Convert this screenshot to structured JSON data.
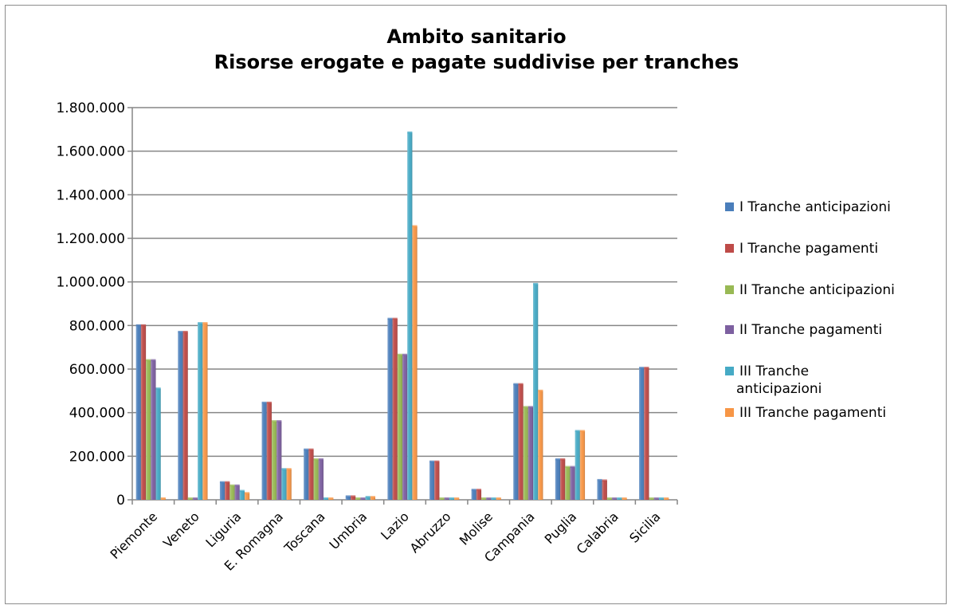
{
  "chart_data": {
    "type": "bar",
    "title": [
      "Ambito sanitario",
      "Risorse erogate e pagate suddivise per tranches"
    ],
    "xlabel": "",
    "ylabel": "",
    "ylim": [
      0,
      1800000
    ],
    "yticks": [
      0,
      200000,
      400000,
      600000,
      800000,
      1000000,
      1200000,
      1400000,
      1600000,
      1800000
    ],
    "ytick_labels": [
      "0",
      "200.000",
      "400.000",
      "600.000",
      "800.000",
      "1.000.000",
      "1.200.000",
      "1.400.000",
      "1.600.000",
      "1.800.000"
    ],
    "grid": true,
    "legend_position": "right",
    "categories": [
      "Piemonte",
      "Veneto",
      "Liguria",
      "E. Romagna",
      "Toscana",
      "Umbria",
      "Lazio",
      "Abruzzo",
      "Molise",
      "Campania",
      "Puglia",
      "Calabria",
      "Sicilia"
    ],
    "series": [
      {
        "name": "I Tranche anticipazioni",
        "label_lines": [
          "I Tranche anticipazioni"
        ],
        "color": "#4a7ebb",
        "values": [
          800000,
          770000,
          80000,
          445000,
          230000,
          15000,
          830000,
          175000,
          45000,
          530000,
          185000,
          90000,
          605000
        ]
      },
      {
        "name": "I Tranche pagamenti",
        "label_lines": [
          "I Tranche pagamenti"
        ],
        "color": "#be4b48",
        "values": [
          800000,
          770000,
          80000,
          445000,
          230000,
          15000,
          830000,
          175000,
          45000,
          530000,
          185000,
          88000,
          605000
        ]
      },
      {
        "name": "II Tranche anticipazioni",
        "label_lines": [
          "II Tranche anticipazioni"
        ],
        "color": "#98b954",
        "values": [
          640000,
          0,
          65000,
          360000,
          185000,
          5000,
          665000,
          0,
          0,
          425000,
          150000,
          0,
          0
        ]
      },
      {
        "name": "II Tranche pagamenti",
        "label_lines": [
          "II Tranche pagamenti"
        ],
        "color": "#7d60a0",
        "values": [
          640000,
          0,
          65000,
          360000,
          185000,
          5000,
          665000,
          0,
          0,
          425000,
          150000,
          0,
          0
        ]
      },
      {
        "name": "III Tranche anticipazioni",
        "label_lines": [
          "III Tranche",
          "anticipazioni"
        ],
        "color": "#46aac5",
        "values": [
          510000,
          810000,
          40000,
          140000,
          0,
          12000,
          1685000,
          0,
          0,
          990000,
          315000,
          0,
          0
        ]
      },
      {
        "name": "III Tranche pagamenti",
        "label_lines": [
          "III Tranche pagamenti"
        ],
        "color": "#f79646",
        "values": [
          0,
          810000,
          30000,
          140000,
          0,
          12000,
          1255000,
          0,
          0,
          500000,
          315000,
          0,
          0
        ]
      }
    ]
  }
}
